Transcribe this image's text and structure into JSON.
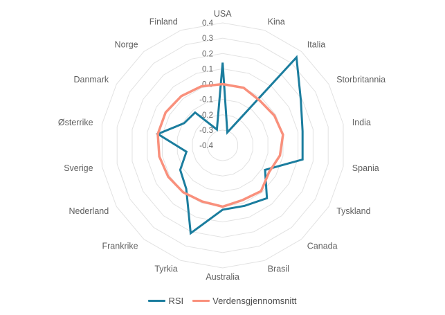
{
  "chart_data": {
    "type": "radar",
    "title": "",
    "categories": [
      "USA",
      "Kina",
      "Italia",
      "Storbritannia",
      "India",
      "Spania",
      "Tyskland",
      "Canada",
      "Brasil",
      "Australia",
      "Tyrkia",
      "Frankrike",
      "Nederland",
      "Sverige",
      "Østerrike",
      "Danmark",
      "Norge",
      "Finland"
    ],
    "series": [
      {
        "name": "RSI",
        "color": "#1b7d9e",
        "stroke_width": 3,
        "values": [
          0.14,
          -0.31,
          0.35,
          0.19,
          0.13,
          0.13,
          -0.08,
          0.05,
          0.02,
          0.02,
          0.21,
          -0.03,
          -0.08,
          -0.16,
          0.03,
          -0.11,
          -0.12,
          -0.29
        ]
      },
      {
        "name": "Verdensgjennomsnitt",
        "color": "#f9907c",
        "stroke_width": 3.5,
        "values": [
          0.0,
          0.0,
          -0.02,
          -0.01,
          0.0,
          -0.02,
          -0.05,
          -0.01,
          -0.02,
          0.0,
          -0.01,
          0.0,
          0.01,
          0.02,
          0.03,
          0.03,
          0.02,
          0.01
        ]
      }
    ],
    "axis": {
      "min": -0.4,
      "max": 0.4,
      "step": 0.1,
      "ticks": [
        0.4,
        0.3,
        0.2,
        0.1,
        0.0,
        -0.1,
        -0.2,
        -0.3,
        -0.4
      ],
      "tick_labels": [
        "0.4",
        "0.3",
        "0.2",
        "0.1",
        "0.0",
        "-0.1",
        "-0.2",
        "-0.3",
        "-0.4"
      ]
    },
    "grid": "on",
    "grid_rings": [
      0.4,
      0.3,
      0.2,
      0.1,
      0.0,
      -0.1,
      -0.2,
      -0.3
    ],
    "legend_position": "bottom"
  },
  "legend": {
    "items": [
      {
        "label": "RSI",
        "color": "#1b7d9e"
      },
      {
        "label": "Verdensgjennomsnitt",
        "color": "#f9907c"
      }
    ]
  },
  "colors": {
    "background": "#ffffff",
    "grid_line": "#e2e2e2",
    "tick_label": "#666666",
    "category_label": "#5f5f5f",
    "legend_text": "#4d4d4d"
  }
}
